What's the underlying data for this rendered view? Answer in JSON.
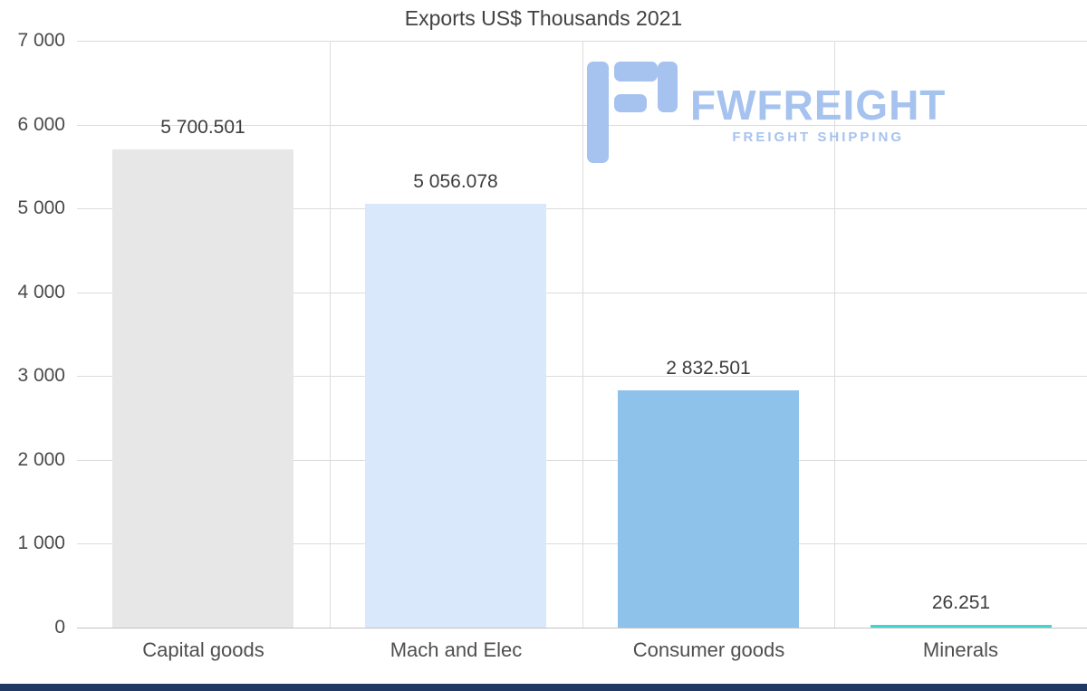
{
  "chart_data": {
    "type": "bar",
    "title": "Exports US$ Thousands 2021",
    "categories": [
      "Capital goods",
      "Mach and Elec",
      "Consumer goods",
      "Minerals"
    ],
    "values": [
      5700.501,
      5056.078,
      2832.501,
      26.251
    ],
    "value_labels": [
      "5 700.501",
      "5 056.078",
      "2 832.501",
      "26.251"
    ],
    "bar_colors": [
      "#e7e7e7",
      "#d9e9fb",
      "#8fc2ea",
      "#40d6ce"
    ],
    "xlabel": "",
    "ylabel": "",
    "ylim": [
      0,
      7000
    ],
    "ytick_values": [
      0,
      1000,
      2000,
      3000,
      4000,
      5000,
      6000,
      7000
    ],
    "ytick_labels": [
      "0",
      "1 000",
      "2 000",
      "3 000",
      "4 000",
      "5 000",
      "6 000",
      "7 000"
    ],
    "grid": "horizontal-and-vertical",
    "legend": "none"
  },
  "logo": {
    "name": "FWFREIGHT",
    "tagline": "FREIGHT SHIPPING",
    "color": "#a6c2ef"
  },
  "footer": {
    "color": "#1f3864"
  },
  "style": {
    "gridline_color": "#dcdcdc",
    "axis_line_color": "#c3c3c3",
    "text_color": "#4a4a4a"
  }
}
